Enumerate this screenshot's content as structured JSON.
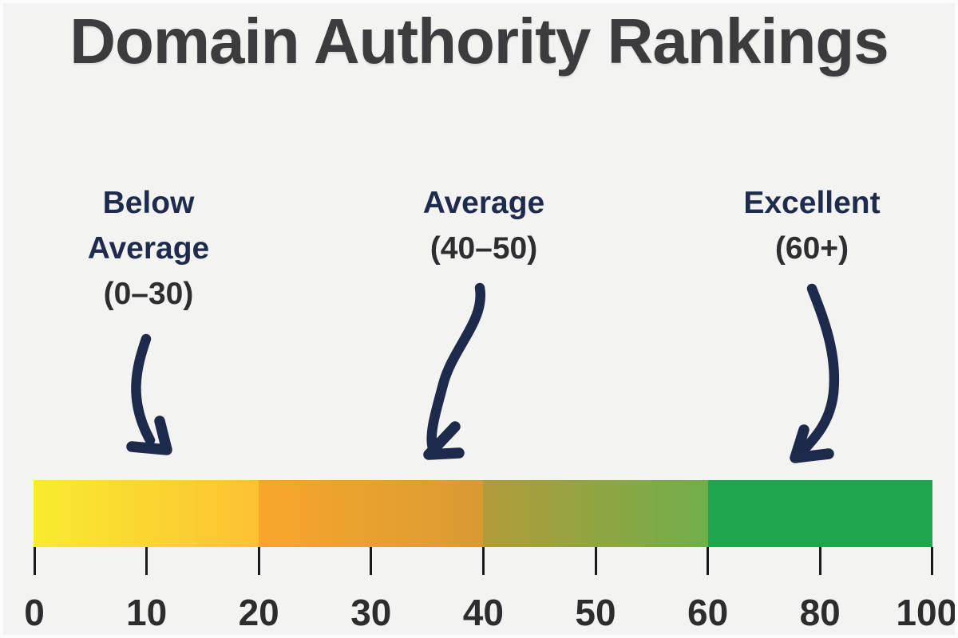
{
  "title": "Domain Authority Rankings",
  "colors": {
    "background": "#f3f3f2",
    "frame": "#fcfcfc",
    "title_text": "#3c3c3e",
    "category_text": "#1f2b4d",
    "range_text": "#2e2e30",
    "arrow": "#1d2a4b",
    "tick": "#1a1a1a",
    "axis_number_text": "#2d2d2f"
  },
  "chart_data": {
    "type": "bar",
    "subtype": "horizontal color-scale / ranking gauge",
    "title": "Domain Authority Rankings",
    "orientation": "horizontal",
    "xlim": [
      0,
      100
    ],
    "x_ticks": [
      "0",
      "10",
      "20",
      "30",
      "40",
      "50",
      "60",
      "80",
      "100"
    ],
    "tick_layout_note": "9 evenly spaced ticks along the full bar; values 70 and 90 are skipped",
    "grid": false,
    "legend": false,
    "segments": [
      {
        "from": 0,
        "to": 20,
        "color_left": "#f9eb2f",
        "color_right": "#fcc133"
      },
      {
        "from": 20,
        "to": 40,
        "color_left": "#f8a72b",
        "color_right": "#d99a33"
      },
      {
        "from": 40,
        "to": 60,
        "color_left": "#b19c39",
        "color_right": "#6fae4a"
      },
      {
        "from": 60,
        "to": 100,
        "color_left": "#1fa54d",
        "color_right": "#1fa54d"
      }
    ],
    "annotations": [
      {
        "label": "Below Average",
        "range_label": "(0–30)",
        "arrow_points_to_value": 12
      },
      {
        "label": "Average",
        "range_label": "(40–50)",
        "arrow_points_to_value": 36
      },
      {
        "label": "Excellent",
        "range_label": "(60+)",
        "arrow_points_to_value": 76
      }
    ]
  }
}
